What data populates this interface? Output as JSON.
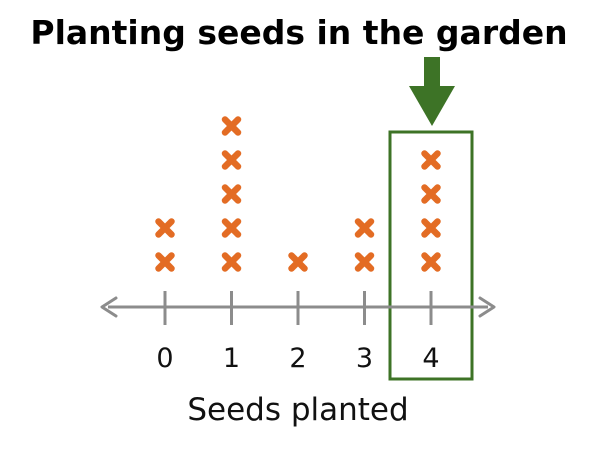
{
  "chart_data": {
    "type": "dot-plot",
    "title": "Planting seeds in the garden",
    "xlabel": "Seeds planted",
    "categories": [
      "0",
      "1",
      "2",
      "3",
      "4"
    ],
    "values": [
      2,
      5,
      1,
      2,
      4
    ],
    "marker": "x",
    "highlighted_category": "4",
    "colors": {
      "marker": "#e36c24",
      "axis": "#8c8c8c",
      "highlight": "#3d7326"
    }
  }
}
